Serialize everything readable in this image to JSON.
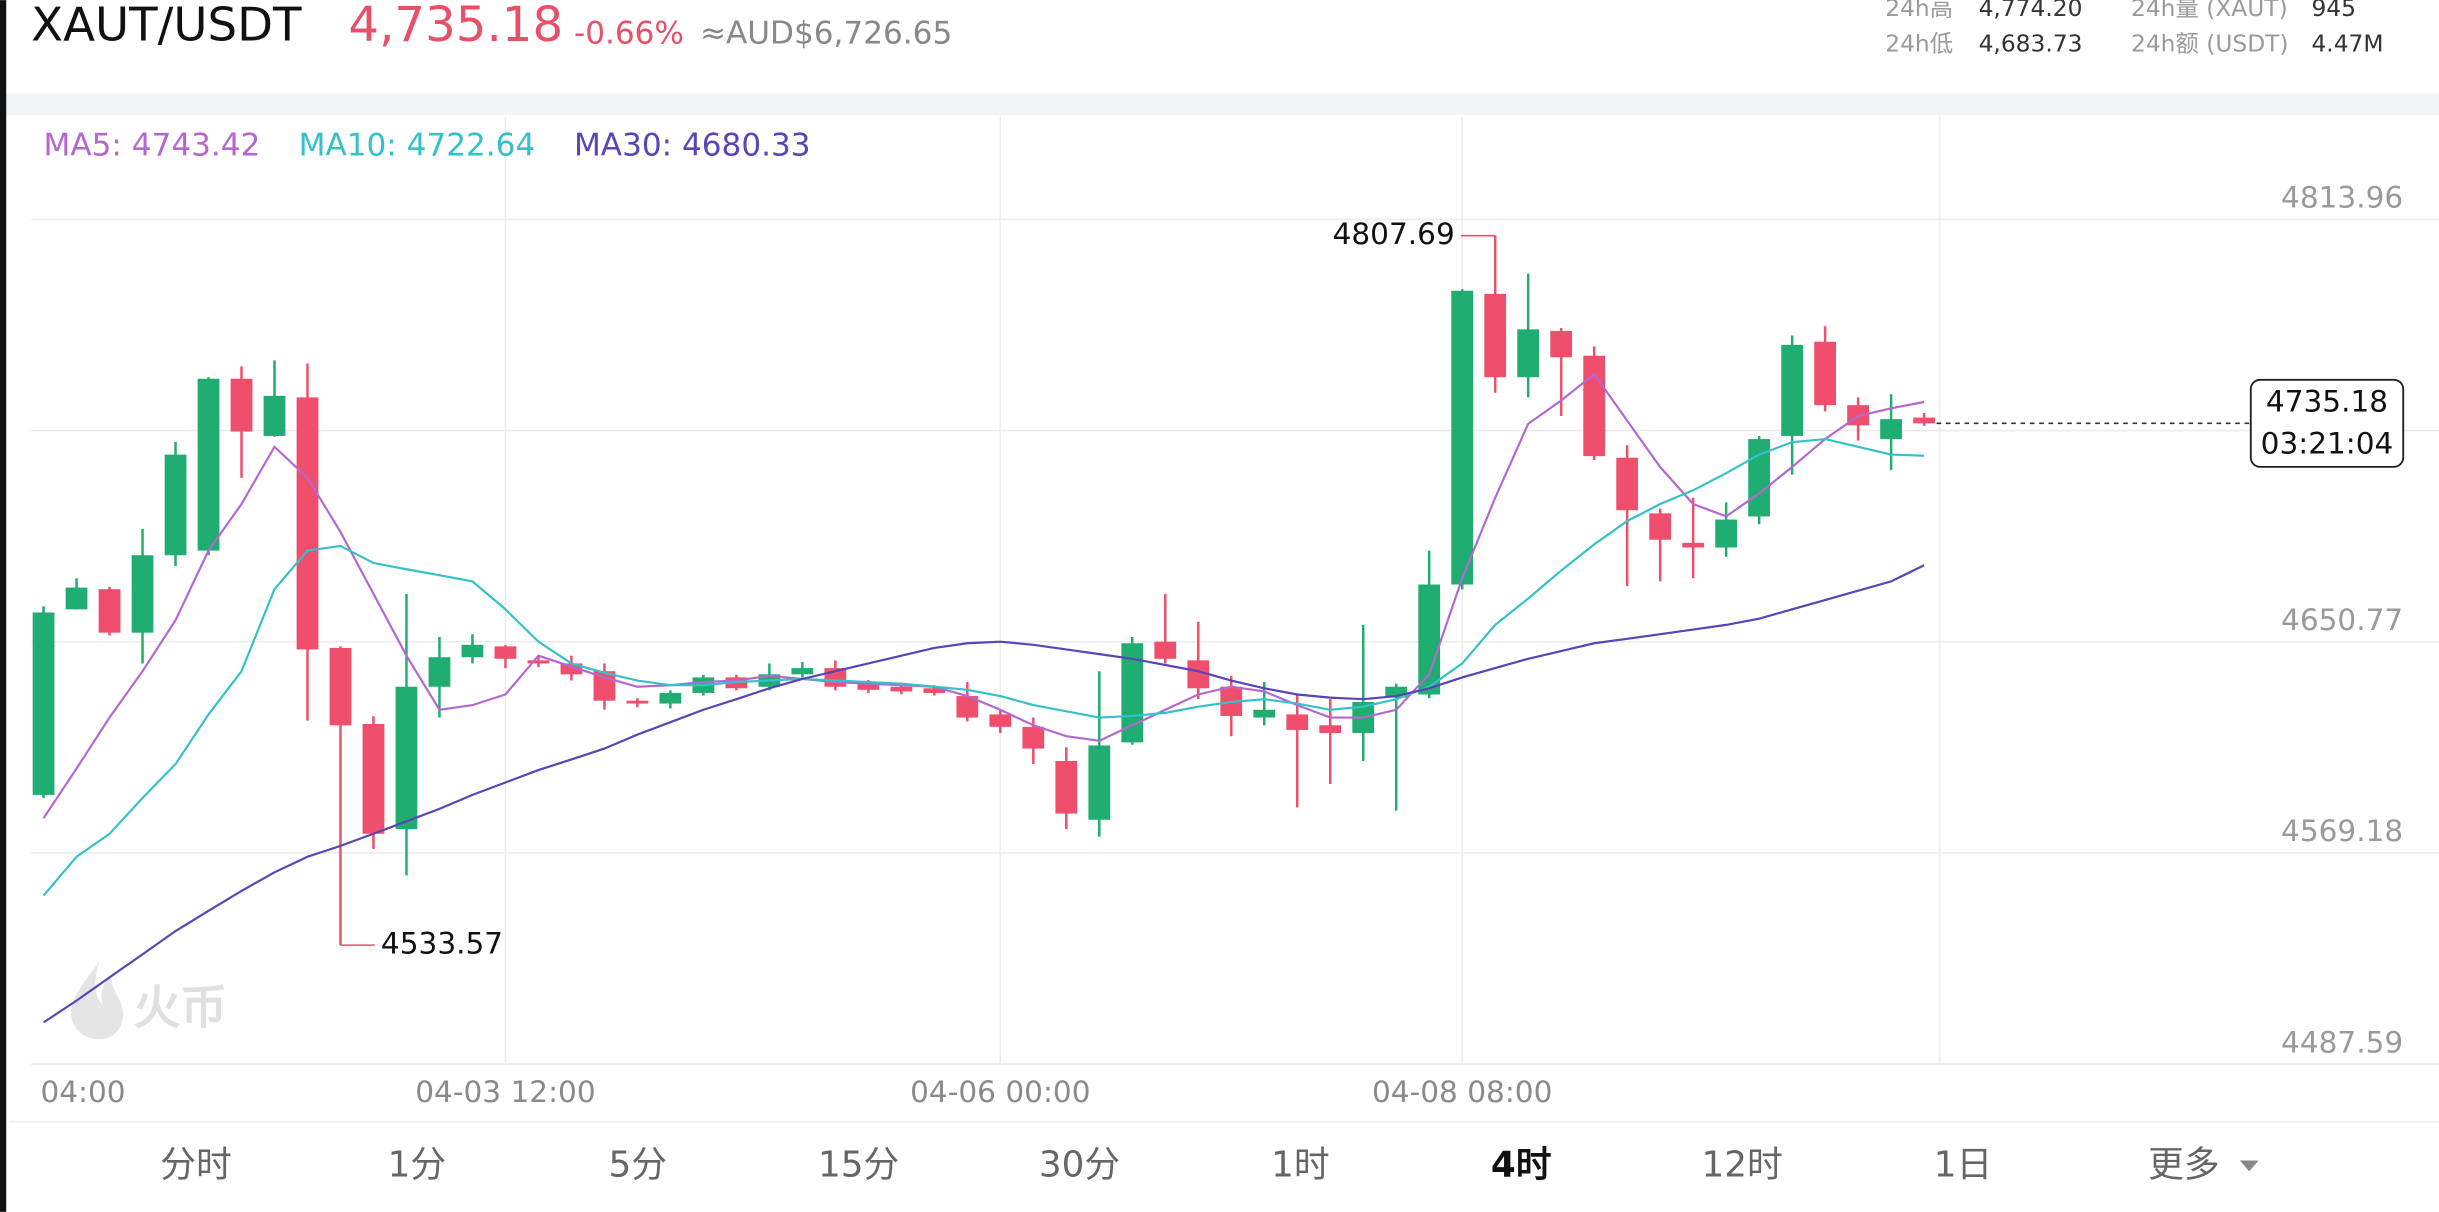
{
  "header": {
    "symbol": "XAUT/USDT",
    "price": "4,735.18",
    "change": "-0.66%",
    "fiat": "≈AUD$6,726.65"
  },
  "stats": [
    {
      "label": "24h高",
      "value": "4,774.20"
    },
    {
      "label": "24h量 (XAUT)",
      "value": "945"
    },
    {
      "label": "24h低",
      "value": "4,683.73"
    },
    {
      "label": "24h额 (USDT)",
      "value": "4.47M"
    }
  ],
  "chart_data": {
    "type": "candlestick",
    "categories": [
      "04:00",
      null,
      null,
      null,
      null,
      null,
      null,
      null,
      null,
      null,
      null,
      null,
      null,
      null,
      "04-03 12:00",
      null,
      null,
      null,
      null,
      null,
      null,
      null,
      null,
      null,
      null,
      null,
      null,
      null,
      null,
      "04-06 00:00",
      null,
      null,
      null,
      null,
      null,
      null,
      null,
      null,
      null,
      null,
      null,
      null,
      null,
      "04-08 08:00",
      null,
      null,
      null,
      null,
      null,
      null,
      null,
      null,
      null,
      null,
      null,
      null,
      null,
      null
    ],
    "open": [
      4591.6,
      4663.3,
      4671.1,
      4654.3,
      4684.2,
      4686.0,
      4752.4,
      4730.3,
      4745.2,
      4648.4,
      4619.0,
      4578.4,
      4633.4,
      4644.8,
      4649.0,
      4643.6,
      4642.4,
      4639.4,
      4628.0,
      4626.9,
      4631.0,
      4637.0,
      4633.4,
      4638.2,
      4640.6,
      4634.6,
      4633.4,
      4632.8,
      4629.8,
      4622.7,
      4617.9,
      4604.7,
      4582.0,
      4611.9,
      4650.8,
      4643.6,
      4633.4,
      4621.5,
      4622.7,
      4618.5,
      4615.5,
      4629.2,
      4630.4,
      4672.9,
      4785.2,
      4753.0,
      4770.9,
      4761.3,
      4721.9,
      4700.4,
      4689.0,
      4687.2,
      4699.2,
      4730.3,
      4766.7,
      4742.2,
      4729.1,
      4737.4
    ],
    "high": [
      4664.5,
      4675.3,
      4672.0,
      4694.4,
      4728.0,
      4753.0,
      4757.2,
      4759.5,
      4758.3,
      4649.0,
      4622.0,
      4669.3,
      4652.6,
      4653.7,
      4649.5,
      4645.0,
      4645.4,
      4642.4,
      4629.0,
      4632.0,
      4638.0,
      4638.0,
      4642.4,
      4643.0,
      4643.6,
      4636.0,
      4634.5,
      4634.0,
      4635.2,
      4624.5,
      4621.5,
      4610.0,
      4639.4,
      4652.6,
      4669.3,
      4658.5,
      4637.6,
      4635.2,
      4630.4,
      4628.6,
      4657.3,
      4634.6,
      4686.0,
      4787.0,
      4807.69,
      4793.0,
      4772.0,
      4764.9,
      4726.7,
      4702.2,
      4706.4,
      4704.6,
      4730.3,
      4769.1,
      4772.7,
      4745.2,
      4746.4,
      4739.2
    ],
    "low": [
      4590.4,
      4663.3,
      4653.2,
      4642.4,
      4680.0,
      4684.2,
      4714.1,
      4730.0,
      4620.3,
      4533.57,
      4570.7,
      4560.5,
      4621.5,
      4642.4,
      4640.6,
      4641.0,
      4635.8,
      4624.5,
      4625.5,
      4625.0,
      4630.0,
      4632.0,
      4632.0,
      4637.0,
      4632.0,
      4631.0,
      4630.5,
      4630.0,
      4620.0,
      4615.5,
      4603.5,
      4578.4,
      4575.5,
      4611.0,
      4642.4,
      4628.6,
      4614.3,
      4618.5,
      4586.8,
      4595.8,
      4604.7,
      4585.6,
      4629.0,
      4671.0,
      4747.0,
      4745.2,
      4738.0,
      4721.0,
      4672.3,
      4674.1,
      4675.3,
      4683.6,
      4696.2,
      4715.3,
      4739.8,
      4728.5,
      4717.1,
      4734.2
    ],
    "close": [
      4662.1,
      4671.7,
      4654.3,
      4684.2,
      4723.1,
      4752.4,
      4732.0,
      4745.8,
      4647.8,
      4618.5,
      4576.6,
      4633.4,
      4644.8,
      4649.6,
      4644.2,
      4642.4,
      4638.2,
      4628.0,
      4626.9,
      4631.0,
      4637.0,
      4632.8,
      4638.2,
      4640.6,
      4633.4,
      4632.2,
      4631.6,
      4631.0,
      4621.5,
      4617.9,
      4609.5,
      4584.4,
      4610.7,
      4650.2,
      4644.2,
      4632.8,
      4622.1,
      4624.5,
      4616.7,
      4615.5,
      4627.5,
      4633.4,
      4672.9,
      4786.4,
      4753.0,
      4771.5,
      4760.7,
      4722.5,
      4701.6,
      4690.2,
      4687.2,
      4698.0,
      4729.1,
      4765.5,
      4742.2,
      4734.4,
      4736.8,
      4735.18
    ],
    "up_color": "#1fad72",
    "down_color": "#ef4f6d",
    "series": [
      {
        "name": "MA5",
        "legend": "MA5: 4743.42",
        "color": "#b468cf",
        "values": [
          4582.6,
          4601.8,
          4621.5,
          4639.4,
          4659.1,
          4686.0,
          4704.0,
          4726.1,
          4714.1,
          4693.2,
          4669.3,
          4645.4,
          4624.5,
          4626.3,
          4630.4,
          4645.4,
          4641.2,
          4637.0,
          4633.4,
          4634.0,
          4635.2,
          4635.8,
          4637.6,
          4636.4,
          4635.2,
          4634.6,
          4634.0,
          4633.4,
          4629.8,
          4624.5,
          4618.5,
          4614.3,
          4612.5,
          4618.5,
          4624.5,
          4630.4,
          4633.4,
          4631.6,
          4626.3,
          4621.5,
          4621.5,
          4624.5,
          4638.2,
          4675.3,
          4706.4,
          4735.0,
          4744.0,
          4754.2,
          4736.2,
          4718.3,
          4704.0,
          4699.2,
          4708.1,
          4718.3,
          4729.1,
          4738.0,
          4741.0,
          4743.42
        ]
      },
      {
        "name": "MA10",
        "legend": "MA10: 4722.64",
        "color": "#34c1c9",
        "values": [
          4552.7,
          4567.7,
          4576.6,
          4590.4,
          4603.5,
          4622.7,
          4639.4,
          4671.1,
          4686.0,
          4687.8,
          4681.2,
          4678.8,
          4676.5,
          4674.1,
          4663.3,
          4650.8,
          4642.4,
          4638.8,
          4635.8,
          4634.0,
          4634.0,
          4635.2,
          4635.8,
          4636.4,
          4635.8,
          4635.2,
          4634.6,
          4633.4,
          4632.2,
          4629.8,
          4626.3,
          4623.9,
          4621.5,
          4622.1,
          4623.3,
          4625.7,
          4627.5,
          4628.6,
          4626.9,
          4624.5,
          4625.7,
          4628.6,
          4633.4,
          4642.4,
          4657.3,
          4667.5,
          4678.3,
          4688.4,
          4697.4,
          4704.0,
          4709.3,
          4715.9,
          4723.1,
          4727.9,
          4729.1,
          4726.1,
          4723.1,
          4722.64
        ]
      },
      {
        "name": "MA30",
        "legend": "MA30: 4680.33",
        "color": "#5b43b8",
        "values": [
          4503.7,
          4512.1,
          4521.1,
          4530.0,
          4539.0,
          4546.8,
          4554.5,
          4561.7,
          4567.7,
          4571.9,
          4576.6,
          4581.4,
          4586.2,
          4591.6,
          4596.4,
          4601.2,
          4605.3,
          4609.5,
          4614.9,
          4619.7,
          4624.5,
          4628.6,
          4632.8,
          4636.4,
          4639.4,
          4642.4,
          4645.4,
          4648.4,
          4650.2,
          4650.8,
          4649.6,
          4647.8,
          4646.0,
          4644.2,
          4641.8,
          4639.4,
          4635.8,
          4632.8,
          4630.4,
          4629.2,
          4628.6,
          4629.8,
          4632.8,
          4637.0,
          4640.6,
          4644.2,
          4647.2,
          4650.2,
          4651.9,
          4653.7,
          4655.5,
          4657.3,
          4659.7,
          4663.3,
          4666.9,
          4670.5,
          4674.1,
          4680.33
        ]
      }
    ],
    "ylim": [
      4487.59,
      4853.62
    ],
    "yticks": [
      4487.59,
      4569.18,
      4650.77,
      4813.96
    ],
    "grid": true,
    "countdown": "03:21:04"
  },
  "watermark": "火币",
  "tabs": [
    "分时",
    "1分",
    "5分",
    "15分",
    "30分",
    "1时",
    "4时",
    "12时",
    "1日",
    "更多"
  ],
  "active_tab": 6
}
